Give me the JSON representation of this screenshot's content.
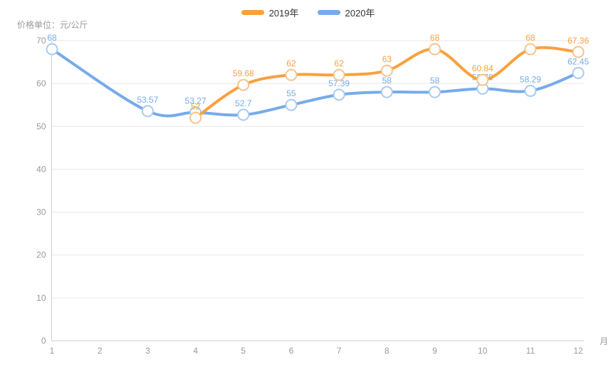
{
  "chart_data": {
    "type": "line",
    "y_axis_name": "价格单位：元/公斤",
    "x_axis_name": "月",
    "x_ticks": [
      "1",
      "2",
      "3",
      "4",
      "5",
      "6",
      "7",
      "8",
      "9",
      "10",
      "11",
      "12"
    ],
    "y_ticks": [
      0,
      10,
      20,
      30,
      40,
      50,
      60,
      70
    ],
    "ylim": [
      0,
      70
    ],
    "xlim": [
      1,
      12
    ],
    "grid": true,
    "smooth": true,
    "legend_position": "top-center",
    "legend": [
      "2019年",
      "2020年"
    ],
    "series": [
      {
        "name": "2019年",
        "color": "#f9a13e",
        "marker_color": "#f6c48c",
        "months": [
          4,
          5,
          6,
          7,
          8,
          9,
          10,
          11,
          12
        ],
        "values": [
          52,
          59.68,
          62,
          62,
          63,
          68,
          60.84,
          68,
          67.36
        ]
      },
      {
        "name": "2020年",
        "color": "#76abeb",
        "marker_color": "#a9cbf2",
        "months": [
          1,
          3,
          4,
          5,
          6,
          7,
          8,
          9,
          10,
          11,
          12
        ],
        "values": [
          68,
          53.57,
          53.27,
          52.7,
          55,
          57.39,
          58,
          58,
          58.79,
          58.29,
          62.45
        ]
      }
    ],
    "axis_color": "#cccccc",
    "grid_color": "#e9e9e9",
    "tick_label_color": "#999999",
    "legend_text_color": "#333333",
    "marker_fill": "#ffffff",
    "background_color": "#ffffff"
  }
}
